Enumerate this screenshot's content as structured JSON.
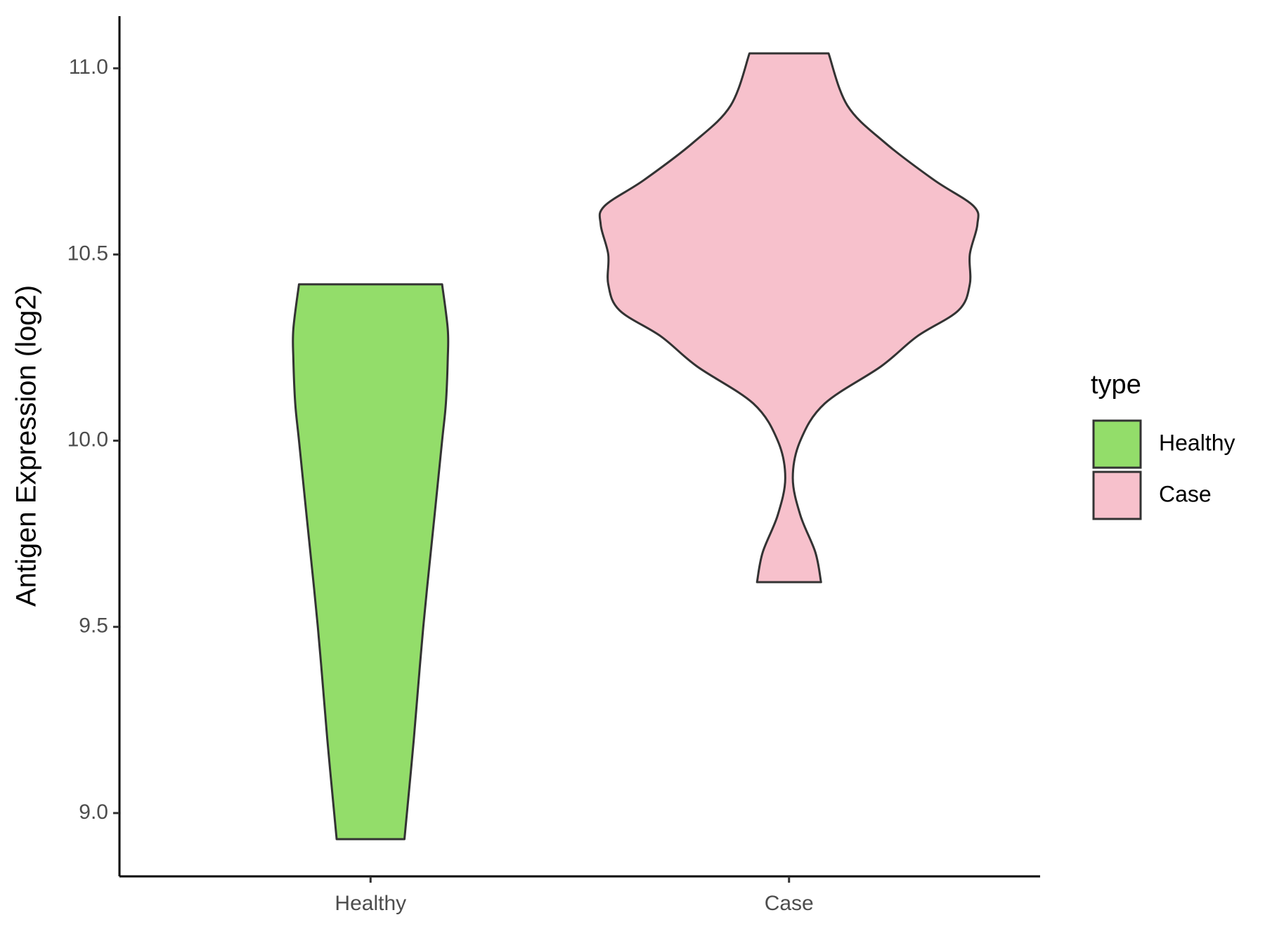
{
  "chart_data": {
    "type": "violin",
    "y_label": "Antigen Expression (log2)",
    "categories": [
      "Healthy",
      "Case"
    ],
    "legend_title": "type",
    "ylim": [
      8.83,
      11.14
    ],
    "yticks": [
      {
        "value": 9,
        "label": "9.0"
      },
      9.5,
      {
        "value": 10,
        "label": "10.0"
      },
      10.5,
      {
        "value": 11,
        "label": "11.0"
      }
    ],
    "series": [
      {
        "name": "Healthy",
        "color": "#93dd6a",
        "y": [
          10.42,
          10.3,
          10.22,
          10.1,
          10.0,
          9.8,
          9.5,
          9.2,
          8.93
        ],
        "density": [
          0.38,
          0.41,
          0.41,
          0.4,
          0.38,
          0.34,
          0.28,
          0.23,
          0.18
        ]
      },
      {
        "name": "Case",
        "color": "#f7c1cc",
        "y": [
          11.04,
          10.9,
          10.8,
          10.7,
          10.63,
          10.58,
          10.5,
          10.42,
          10.35,
          10.28,
          10.2,
          10.1,
          10.0,
          9.9,
          9.8,
          9.7,
          9.62
        ],
        "density": [
          0.21,
          0.31,
          0.51,
          0.77,
          0.98,
          1.0,
          0.96,
          0.96,
          0.9,
          0.68,
          0.49,
          0.19,
          0.06,
          0.02,
          0.06,
          0.14,
          0.17
        ]
      }
    ]
  }
}
